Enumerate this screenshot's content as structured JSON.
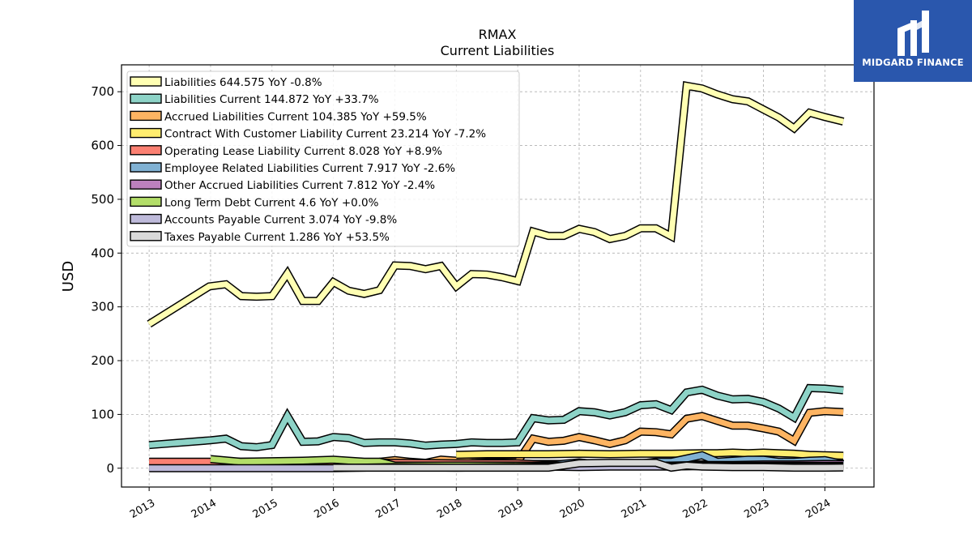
{
  "brand": {
    "name": "MIDGARD FINANCE",
    "bg_color": "#2a57ad"
  },
  "chart_data": {
    "type": "line",
    "title": "RMAX",
    "subtitle": "Current  Liabilities",
    "ylabel": "USD",
    "xlabel": "",
    "ylim": [
      -35,
      750
    ],
    "yticks": [
      0,
      100,
      200,
      300,
      400,
      500,
      600,
      700
    ],
    "xlim": [
      2012.55,
      2024.8
    ],
    "xticks": [
      2013,
      2014,
      2015,
      2016,
      2017,
      2018,
      2019,
      2020,
      2021,
      2022,
      2023,
      2024
    ],
    "grid": true,
    "legend_position": "top-left",
    "series": [
      {
        "name": "Liabilities",
        "legend": "Liabilities  644.575 YoY -0.8%",
        "color": "#ffffb3",
        "x": [
          2013.0,
          2013.98,
          2014.25,
          2014.5,
          2014.75,
          2015.0,
          2015.25,
          2015.5,
          2015.75,
          2016.0,
          2016.25,
          2016.5,
          2016.75,
          2017.0,
          2017.25,
          2017.5,
          2017.75,
          2018.0,
          2018.25,
          2018.5,
          2018.75,
          2019.0,
          2019.25,
          2019.5,
          2019.75,
          2020.0,
          2020.25,
          2020.5,
          2020.75,
          2021.0,
          2021.25,
          2021.5,
          2021.75,
          2022.0,
          2022.25,
          2022.5,
          2022.75,
          2023.0,
          2023.25,
          2023.5,
          2023.75,
          2024.0,
          2024.3
        ],
        "y": [
          268,
          338,
          342,
          320,
          319,
          320,
          362,
          311,
          311,
          346,
          330,
          324,
          331,
          377,
          376,
          370,
          376,
          338,
          361,
          360,
          355,
          348,
          440,
          432,
          432,
          445,
          439,
          426,
          432,
          446,
          446,
          431,
          711,
          706,
          695,
          686,
          682,
          667,
          652,
          632,
          661,
          653,
          644.575
        ]
      },
      {
        "name": "Liabilities Current",
        "legend": "Liabilities Current  144.872 YoY +33.7%",
        "color": "#8dd3c7",
        "x": [
          2013.0,
          2014.0,
          2014.25,
          2014.5,
          2014.75,
          2015.0,
          2015.25,
          2015.5,
          2015.75,
          2016.0,
          2016.25,
          2016.5,
          2016.75,
          2017.0,
          2017.25,
          2017.5,
          2017.75,
          2018.0,
          2018.25,
          2018.5,
          2018.75,
          2019.0,
          2019.25,
          2019.5,
          2019.75,
          2020.0,
          2020.25,
          2020.5,
          2020.75,
          2021.0,
          2021.25,
          2021.5,
          2021.75,
          2022.0,
          2022.25,
          2022.5,
          2022.75,
          2023.0,
          2023.25,
          2023.5,
          2023.75,
          2024.0,
          2024.3
        ],
        "y": [
          43,
          52,
          55,
          41,
          39,
          43,
          97,
          49,
          50,
          58,
          56,
          47,
          48,
          48,
          46,
          42,
          44,
          45,
          48,
          47,
          47,
          48,
          93,
          89,
          90,
          106,
          104,
          98,
          104,
          117,
          119,
          108,
          141,
          146,
          135,
          128,
          129,
          123,
          111,
          94,
          149,
          148,
          144.872
        ]
      },
      {
        "name": "Accrued Liabilities Current",
        "legend": "Accrued Liabilities Current  104.385 YoY +59.5%",
        "color": "#fdb462",
        "x": [
          2016.75,
          2017.0,
          2017.25,
          2017.5,
          2017.75,
          2018.0,
          2018.25,
          2018.5,
          2018.75,
          2019.0,
          2019.25,
          2019.5,
          2019.75,
          2020.0,
          2020.25,
          2020.5,
          2020.75,
          2021.0,
          2021.25,
          2021.5,
          2021.75,
          2022.0,
          2022.25,
          2022.5,
          2022.75,
          2023.0,
          2023.25,
          2023.5,
          2023.75,
          2024.0,
          2024.3
        ],
        "y": [
          12,
          15,
          12,
          10,
          16,
          14,
          12,
          11,
          11,
          12,
          55,
          49,
          51,
          58,
          52,
          45,
          52,
          68,
          67,
          63,
          92,
          97,
          88,
          79,
          79,
          74,
          68,
          51,
          103,
          106,
          104.385
        ]
      },
      {
        "name": "Contract With Customer Liability Current",
        "legend": "Contract With Customer Liability Current  23.214 YoY -7.2%",
        "color": "#ffed6f",
        "x": [
          2018.0,
          2018.5,
          2019.0,
          2019.5,
          2020.0,
          2020.5,
          2021.0,
          2021.5,
          2022.0,
          2022.25,
          2022.5,
          2022.75,
          2023.0,
          2023.25,
          2023.5,
          2023.75,
          2024.0,
          2024.3
        ],
        "y": [
          25,
          26,
          26,
          26,
          27,
          26,
          27,
          27,
          28,
          28,
          29,
          28,
          29,
          28,
          27,
          25,
          24,
          23.214
        ]
      },
      {
        "name": "Operating Lease Liability Current",
        "legend": "Operating Lease Liability Current  8.028 YoY +8.9%",
        "color": "#fb8072",
        "x": [
          2013.0,
          2014.0,
          2015.0,
          2016.0,
          2017.0,
          2018.0,
          2019.0,
          2019.25,
          2019.5,
          2020.0,
          2020.5,
          2021.0,
          2021.5,
          2022.0,
          2022.5,
          2023.0,
          2023.5,
          2024.0,
          2024.3
        ],
        "y": [
          12,
          12,
          12,
          11,
          10,
          9,
          9,
          8,
          8,
          8,
          7,
          7,
          7,
          7,
          7,
          7,
          7,
          7.4,
          8.028
        ]
      },
      {
        "name": "Employee Related Liabilities Current",
        "legend": "Employee Related Liabilities Current  7.917 YoY -2.6%",
        "color": "#80b1d3",
        "x": [
          2019.0,
          2019.5,
          2020.0,
          2020.5,
          2021.0,
          2021.25,
          2021.5,
          2021.75,
          2022.0,
          2022.25,
          2022.5,
          2022.75,
          2023.0,
          2023.25,
          2023.5,
          2023.75,
          2024.0,
          2024.3
        ],
        "y": [
          4,
          6,
          11,
          5,
          9,
          12,
          12,
          18,
          24,
          12,
          14,
          16,
          16,
          12,
          12,
          14,
          15,
          7.917
        ]
      },
      {
        "name": "Other Accrued Liabilities Current",
        "legend": "Other Accrued Liabilities Current  7.812 YoY -2.4%",
        "color": "#bc80bd",
        "x": [
          2019.0,
          2019.5,
          2020.0,
          2020.5,
          2021.0,
          2021.5,
          2022.0,
          2022.5,
          2023.0,
          2023.5,
          2024.0,
          2024.3
        ],
        "y": [
          2,
          3,
          3,
          4,
          5,
          5,
          6,
          6,
          7,
          7,
          8,
          7.812
        ]
      },
      {
        "name": "Long Term Debt Current",
        "legend": "Long Term Debt Current  4.6 YoY +0.0%",
        "color": "#b3de69",
        "x": [
          2014.0,
          2014.5,
          2015.0,
          2015.5,
          2016.0,
          2016.5,
          2016.75,
          2017.0,
          2017.5,
          2018.0,
          2019.0,
          2020.0,
          2021.0,
          2022.0,
          2023.0,
          2024.0,
          2024.3
        ],
        "y": [
          17,
          12,
          13,
          14,
          16,
          12,
          12,
          5,
          5,
          5,
          5,
          5,
          5,
          5,
          4.6,
          4.6,
          4.6
        ]
      },
      {
        "name": "Accounts Payable Current",
        "legend": "Accounts Payable Current  3.074 YoY -9.8%",
        "color": "#bebada",
        "x": [
          2013.0,
          2014.0,
          2015.0,
          2016.0,
          2017.0,
          2018.0,
          2019.0,
          2019.5,
          2020.0,
          2020.5,
          2021.0,
          2021.5,
          2022.0,
          2022.5,
          2023.0,
          2023.5,
          2024.0,
          2024.3
        ],
        "y": [
          0,
          0,
          0,
          0,
          2,
          1,
          2,
          3,
          2,
          3,
          3,
          3,
          4,
          3,
          3,
          3,
          3.4,
          3.074
        ]
      },
      {
        "name": "Taxes Payable Current",
        "legend": "Taxes Payable Current  1.286 YoY +53.5%",
        "color": "#d9d9d9",
        "x": [
          2016.0,
          2017.0,
          2018.0,
          2019.0,
          2019.5,
          2020.0,
          2020.5,
          2021.0,
          2021.25,
          2021.5,
          2021.75,
          2022.0,
          2022.5,
          2023.0,
          2023.5,
          2024.0,
          2024.3
        ],
        "y": [
          1,
          1,
          1,
          1,
          1,
          9,
          10,
          10,
          10,
          1,
          5,
          3,
          2,
          2,
          1,
          1,
          1.286
        ]
      }
    ]
  }
}
